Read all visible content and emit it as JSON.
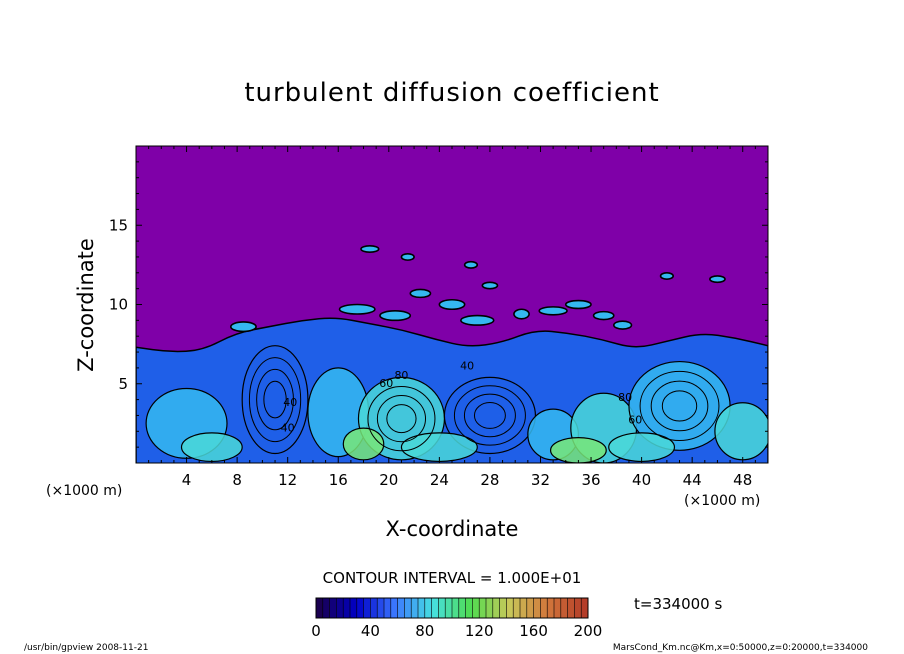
{
  "chart_data": {
    "type": "heatmap",
    "title": "turbulent diffusion coefficient",
    "xlabel": "X-coordinate",
    "ylabel": "Z-coordinate",
    "x_unit": "(×1000 m)",
    "y_unit": "(×1000 m)",
    "xlim": [
      0,
      50
    ],
    "ylim": [
      0,
      20
    ],
    "x_ticks": [
      4,
      8,
      12,
      16,
      20,
      24,
      28,
      32,
      36,
      40,
      44,
      48
    ],
    "y_ticks": [
      5,
      10,
      15
    ],
    "contour_interval_text": "CONTOUR INTERVAL = 1.000E+01",
    "time_text": "t=334000 s",
    "colorbar": {
      "min": 0,
      "max": 200,
      "ticks": [
        0,
        40,
        80,
        120,
        160,
        200
      ],
      "colors": [
        "#1a0050",
        "#0000c8",
        "#3c78ff",
        "#46e0e0",
        "#50dc50",
        "#c8c85a",
        "#d2783c",
        "#b43c28"
      ]
    },
    "colors": {
      "background_field": "#7f00a8",
      "low_field": "#1f5fe8",
      "mid_field": "#35b8f0",
      "high_field": "#4ad8d8",
      "peak_field": "#78e678"
    },
    "boundary_layer_top_km": [
      7.3,
      7.0,
      7.1,
      8.2,
      8.6,
      9.0,
      9.2,
      8.8,
      8.4,
      7.8,
      7.3,
      7.6,
      8.4,
      8.2,
      7.8,
      7.2,
      7.7,
      8.2,
      7.9,
      7.4
    ],
    "annotations": [
      "40",
      "60",
      "80",
      "40",
      "60",
      "80",
      "40"
    ]
  },
  "footer": {
    "left": "/usr/bin/gpview   2008-11-21",
    "right": "MarsCond_Km.nc@Km,x=0:50000,z=0:20000,t=334000"
  }
}
